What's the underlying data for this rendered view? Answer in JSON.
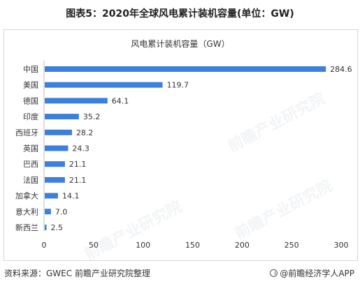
{
  "figure_title": "图表5：2020年全球风电累计装机容量(单位：GW)",
  "source_text": "资料来源：GWEC 前瞻产业研究院整理",
  "brand_text": "@前瞻经济学人APP",
  "watermark_text": "前瞻产业研究院",
  "colors": {
    "bar": "#3c7fdd",
    "axis": "#bdbdbd",
    "text": "#333333"
  },
  "chart_data": {
    "type": "bar",
    "orientation": "horizontal",
    "title": "风电累计装机容量（GW）",
    "xlabel": "",
    "ylabel": "",
    "categories": [
      "中国",
      "美国",
      "德国",
      "印度",
      "西班牙",
      "英国",
      "巴西",
      "法国",
      "加拿大",
      "意大利",
      "新西兰"
    ],
    "values": [
      284.6,
      119.7,
      64.1,
      35.2,
      28.2,
      24.3,
      21.1,
      21.1,
      14.1,
      7.0,
      2.5
    ],
    "value_labels": [
      "284.6",
      "119.7",
      "64.1",
      "35.2",
      "28.2",
      "24.3",
      "21.1",
      "21.1",
      "14.1",
      "7.0",
      "2.5"
    ],
    "xlim": [
      0,
      300
    ],
    "xticks": [
      "0",
      "50",
      "100",
      "150",
      "200",
      "250",
      "300"
    ],
    "grid": false,
    "legend": "none"
  }
}
